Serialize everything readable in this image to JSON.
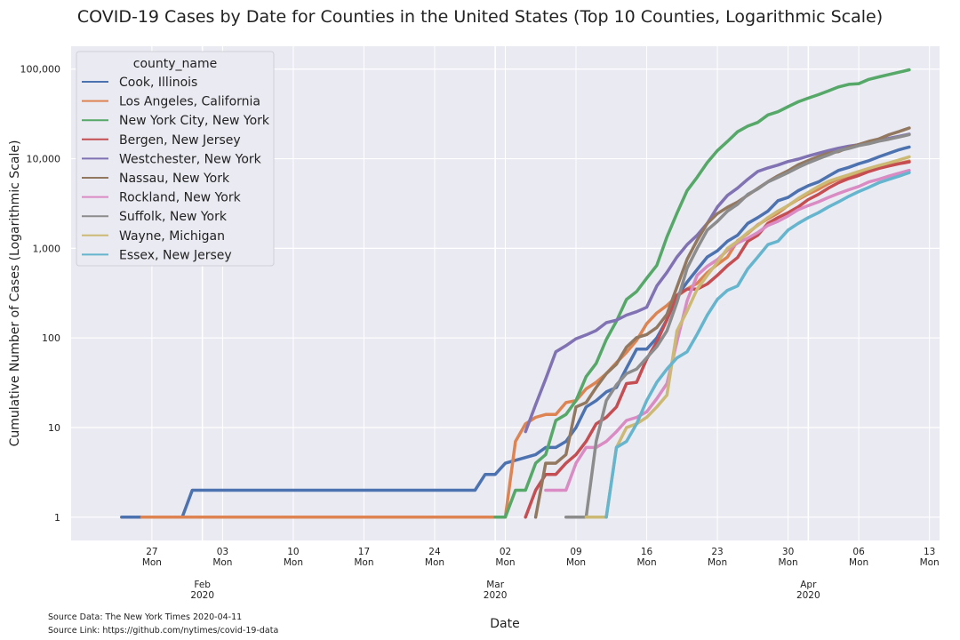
{
  "chart_data": {
    "type": "line",
    "title": "COVID-19 Cases by Date for Counties in the United States (Top 10 Counties, Logarithmic Scale)",
    "xlabel": "Date",
    "ylabel": "Cumulative Number of Cases (Logarithmic Scale)",
    "yscale": "log",
    "ylim": [
      0.55,
      180000
    ],
    "xlim": [
      "2020-01-19",
      "2020-04-14"
    ],
    "yticks": [
      1,
      10,
      100,
      1000,
      10000,
      100000
    ],
    "ytick_labels": [
      "1",
      "10",
      "100",
      "1,000",
      "10,000",
      "100,000"
    ],
    "xticks": [
      {
        "date": "2020-01-27",
        "day": "27",
        "weekday": "Mon"
      },
      {
        "date": "2020-02-03",
        "day": "03",
        "weekday": "Mon"
      },
      {
        "date": "2020-02-10",
        "day": "10",
        "weekday": "Mon"
      },
      {
        "date": "2020-02-17",
        "day": "17",
        "weekday": "Mon"
      },
      {
        "date": "2020-02-24",
        "day": "24",
        "weekday": "Mon"
      },
      {
        "date": "2020-03-02",
        "day": "02",
        "weekday": "Mon"
      },
      {
        "date": "2020-03-09",
        "day": "09",
        "weekday": "Mon"
      },
      {
        "date": "2020-03-16",
        "day": "16",
        "weekday": "Mon"
      },
      {
        "date": "2020-03-23",
        "day": "23",
        "weekday": "Mon"
      },
      {
        "date": "2020-03-30",
        "day": "30",
        "weekday": "Mon"
      },
      {
        "date": "2020-04-06",
        "day": "06",
        "weekday": "Mon"
      },
      {
        "date": "2020-04-13",
        "day": "13",
        "weekday": "Mon"
      }
    ],
    "month_ticks": [
      {
        "date": "2020-02-01",
        "month": "Feb",
        "year": "2020"
      },
      {
        "date": "2020-03-01",
        "month": "Mar",
        "year": "2020"
      },
      {
        "date": "2020-04-01",
        "month": "Apr",
        "year": "2020"
      }
    ],
    "grid": true,
    "legend_title": "county_name",
    "legend_position": "top-left",
    "series": [
      {
        "name": "Cook, Illinois",
        "color": "#4c72b0",
        "x": [
          "2020-01-24",
          "2020-01-26",
          "2020-01-30",
          "2020-01-31",
          "2020-02-28",
          "2020-02-29",
          "2020-03-01",
          "2020-03-02",
          "2020-03-05",
          "2020-03-06",
          "2020-03-07",
          "2020-03-08",
          "2020-03-09",
          "2020-03-10",
          "2020-03-11",
          "2020-03-12",
          "2020-03-13",
          "2020-03-14",
          "2020-03-15",
          "2020-03-16",
          "2020-03-17",
          "2020-03-18",
          "2020-03-19",
          "2020-03-20",
          "2020-03-21",
          "2020-03-22",
          "2020-03-23",
          "2020-03-24",
          "2020-03-25",
          "2020-03-26",
          "2020-03-27",
          "2020-03-28",
          "2020-03-29",
          "2020-03-30",
          "2020-03-31",
          "2020-04-01",
          "2020-04-02",
          "2020-04-03",
          "2020-04-04",
          "2020-04-05",
          "2020-04-06",
          "2020-04-07",
          "2020-04-08",
          "2020-04-09",
          "2020-04-10",
          "2020-04-11"
        ],
        "y": [
          1,
          1,
          1,
          2,
          2,
          3,
          3,
          4,
          5,
          6,
          6,
          7,
          10,
          17,
          20,
          25,
          28,
          46,
          75,
          75,
          100,
          160,
          290,
          420,
          580,
          800,
          940,
          1200,
          1400,
          1900,
          2200,
          2600,
          3400,
          3700,
          4400,
          5000,
          5500,
          6400,
          7400,
          8000,
          8800,
          9500,
          10500,
          11500,
          12600,
          13500
        ]
      },
      {
        "name": "Los Angeles, California",
        "color": "#dd8452",
        "x": [
          "2020-01-26",
          "2020-03-01",
          "2020-03-02",
          "2020-03-03",
          "2020-03-04",
          "2020-03-05",
          "2020-03-06",
          "2020-03-07",
          "2020-03-08",
          "2020-03-09",
          "2020-03-10",
          "2020-03-11",
          "2020-03-12",
          "2020-03-13",
          "2020-03-14",
          "2020-03-15",
          "2020-03-16",
          "2020-03-17",
          "2020-03-18",
          "2020-03-19",
          "2020-03-20",
          "2020-03-21",
          "2020-03-22",
          "2020-03-23",
          "2020-03-24",
          "2020-03-25",
          "2020-03-26",
          "2020-03-27",
          "2020-03-28",
          "2020-03-29",
          "2020-03-30",
          "2020-03-31",
          "2020-04-01",
          "2020-04-02",
          "2020-04-03",
          "2020-04-04",
          "2020-04-05",
          "2020-04-06",
          "2020-04-07",
          "2020-04-08",
          "2020-04-09",
          "2020-04-10",
          "2020-04-11"
        ],
        "y": [
          1,
          1,
          1,
          7,
          11,
          13,
          14,
          14,
          19,
          20,
          27,
          32,
          40,
          53,
          69,
          94,
          144,
          190,
          230,
          292,
          351,
          407,
          536,
          662,
          799,
          1216,
          1465,
          1829,
          2136,
          2474,
          3011,
          3518,
          4045,
          4566,
          5277,
          5940,
          6360,
          6910,
          7530,
          7955,
          8430,
          8873,
          9420
        ]
      },
      {
        "name": "New York City, New York",
        "color": "#55a868",
        "x": [
          "2020-03-01",
          "2020-03-02",
          "2020-03-03",
          "2020-03-04",
          "2020-03-05",
          "2020-03-06",
          "2020-03-07",
          "2020-03-08",
          "2020-03-09",
          "2020-03-10",
          "2020-03-11",
          "2020-03-12",
          "2020-03-13",
          "2020-03-14",
          "2020-03-15",
          "2020-03-16",
          "2020-03-17",
          "2020-03-18",
          "2020-03-19",
          "2020-03-20",
          "2020-03-21",
          "2020-03-22",
          "2020-03-23",
          "2020-03-24",
          "2020-03-25",
          "2020-03-26",
          "2020-03-27",
          "2020-03-28",
          "2020-03-29",
          "2020-03-30",
          "2020-03-31",
          "2020-04-01",
          "2020-04-02",
          "2020-04-03",
          "2020-04-04",
          "2020-04-05",
          "2020-04-06",
          "2020-04-07",
          "2020-04-08",
          "2020-04-09",
          "2020-04-10",
          "2020-04-11"
        ],
        "y": [
          1,
          1,
          2,
          2,
          4,
          5,
          12,
          14,
          20,
          37,
          52,
          96,
          154,
          269,
          329,
          463,
          644,
          1339,
          2469,
          4408,
          6211,
          9045,
          12339,
          15597,
          20011,
          23112,
          25398,
          30765,
          33474,
          38087,
          43139,
          47439,
          51809,
          57159,
          63306,
          67551,
          68776,
          76876,
          81803,
          87028,
          92384,
          98308
        ]
      },
      {
        "name": "Bergen, New Jersey",
        "color": "#c44e52",
        "x": [
          "2020-03-04",
          "2020-03-05",
          "2020-03-06",
          "2020-03-07",
          "2020-03-08",
          "2020-03-09",
          "2020-03-10",
          "2020-03-11",
          "2020-03-12",
          "2020-03-13",
          "2020-03-14",
          "2020-03-15",
          "2020-03-16",
          "2020-03-17",
          "2020-03-18",
          "2020-03-19",
          "2020-03-20",
          "2020-03-21",
          "2020-03-22",
          "2020-03-23",
          "2020-03-24",
          "2020-03-25",
          "2020-03-26",
          "2020-03-27",
          "2020-03-28",
          "2020-03-29",
          "2020-03-30",
          "2020-03-31",
          "2020-04-01",
          "2020-04-02",
          "2020-04-03",
          "2020-04-04",
          "2020-04-05",
          "2020-04-06",
          "2020-04-07",
          "2020-04-08",
          "2020-04-09",
          "2020-04-10",
          "2020-04-11"
        ],
        "y": [
          1,
          2,
          3,
          3,
          4,
          5,
          7,
          11,
          13,
          17,
          31,
          32,
          58,
          90,
          160,
          300,
          350,
          350,
          400,
          500,
          640,
          790,
          1200,
          1400,
          1900,
          2200,
          2500,
          2900,
          3500,
          4000,
          4700,
          5400,
          6000,
          6500,
          7200,
          7800,
          8300,
          8800,
          9200
        ]
      },
      {
        "name": "Westchester, New York",
        "color": "#8172b3",
        "x": [
          "2020-03-04",
          "2020-03-05",
          "2020-03-06",
          "2020-03-07",
          "2020-03-08",
          "2020-03-09",
          "2020-03-10",
          "2020-03-11",
          "2020-03-12",
          "2020-03-13",
          "2020-03-14",
          "2020-03-15",
          "2020-03-16",
          "2020-03-17",
          "2020-03-18",
          "2020-03-19",
          "2020-03-20",
          "2020-03-21",
          "2020-03-22",
          "2020-03-23",
          "2020-03-24",
          "2020-03-25",
          "2020-03-26",
          "2020-03-27",
          "2020-03-28",
          "2020-03-29",
          "2020-03-30",
          "2020-03-31",
          "2020-04-01",
          "2020-04-02",
          "2020-04-03",
          "2020-04-04",
          "2020-04-05",
          "2020-04-06",
          "2020-04-07",
          "2020-04-08",
          "2020-04-09",
          "2020-04-10",
          "2020-04-11"
        ],
        "y": [
          9,
          18,
          35,
          70,
          82,
          98,
          108,
          121,
          148,
          158,
          180,
          196,
          220,
          380,
          540,
          800,
          1100,
          1400,
          1900,
          2900,
          3900,
          4700,
          5900,
          7200,
          7900,
          8500,
          9300,
          9900,
          10700,
          11500,
          12300,
          13100,
          13800,
          14300,
          14800,
          15900,
          16900,
          17800,
          18800
        ]
      },
      {
        "name": "Nassau, New York",
        "color": "#937860",
        "x": [
          "2020-03-05",
          "2020-03-06",
          "2020-03-07",
          "2020-03-08",
          "2020-03-09",
          "2020-03-10",
          "2020-03-11",
          "2020-03-12",
          "2020-03-13",
          "2020-03-14",
          "2020-03-15",
          "2020-03-16",
          "2020-03-17",
          "2020-03-18",
          "2020-03-19",
          "2020-03-20",
          "2020-03-21",
          "2020-03-22",
          "2020-03-23",
          "2020-03-24",
          "2020-03-25",
          "2020-03-26",
          "2020-03-27",
          "2020-03-28",
          "2020-03-29",
          "2020-03-30",
          "2020-03-31",
          "2020-04-01",
          "2020-04-02",
          "2020-04-03",
          "2020-04-04",
          "2020-04-05",
          "2020-04-06",
          "2020-04-07",
          "2020-04-08",
          "2020-04-09",
          "2020-04-10",
          "2020-04-11"
        ],
        "y": [
          1,
          4,
          4,
          5,
          17,
          19,
          28,
          40,
          51,
          79,
          101,
          109,
          131,
          183,
          372,
          754,
          1234,
          1900,
          2442,
          2869,
          3285,
          3914,
          4657,
          5537,
          6445,
          7344,
          8544,
          9554,
          10587,
          11544,
          12024,
          13346,
          14398,
          15616,
          16610,
          18548,
          20140,
          22035
        ]
      },
      {
        "name": "Rockland, New York",
        "color": "#da8bc3",
        "x": [
          "2020-03-06",
          "2020-03-07",
          "2020-03-08",
          "2020-03-09",
          "2020-03-10",
          "2020-03-11",
          "2020-03-12",
          "2020-03-13",
          "2020-03-14",
          "2020-03-15",
          "2020-03-16",
          "2020-03-17",
          "2020-03-18",
          "2020-03-19",
          "2020-03-20",
          "2020-03-21",
          "2020-03-22",
          "2020-03-23",
          "2020-03-24",
          "2020-03-25",
          "2020-03-26",
          "2020-03-27",
          "2020-03-28",
          "2020-03-29",
          "2020-03-30",
          "2020-03-31",
          "2020-04-01",
          "2020-04-02",
          "2020-04-03",
          "2020-04-04",
          "2020-04-05",
          "2020-04-06",
          "2020-04-07",
          "2020-04-08",
          "2020-04-09",
          "2020-04-10",
          "2020-04-11"
        ],
        "y": [
          2,
          2,
          2,
          4,
          6,
          6,
          7,
          9,
          12,
          13,
          15,
          21,
          31,
          91,
          260,
          500,
          630,
          750,
          950,
          1150,
          1300,
          1500,
          1800,
          2000,
          2300,
          2700,
          3000,
          3300,
          3700,
          4100,
          4500,
          4900,
          5500,
          5900,
          6400,
          6900,
          7400
        ]
      },
      {
        "name": "Suffolk, New York",
        "color": "#8c8c8c",
        "x": [
          "2020-03-08",
          "2020-03-09",
          "2020-03-10",
          "2020-03-11",
          "2020-03-12",
          "2020-03-13",
          "2020-03-14",
          "2020-03-15",
          "2020-03-16",
          "2020-03-17",
          "2020-03-18",
          "2020-03-19",
          "2020-03-20",
          "2020-03-21",
          "2020-03-22",
          "2020-03-23",
          "2020-03-24",
          "2020-03-25",
          "2020-03-26",
          "2020-03-27",
          "2020-03-28",
          "2020-03-29",
          "2020-03-30",
          "2020-03-31",
          "2020-04-01",
          "2020-04-02",
          "2020-04-03",
          "2020-04-04",
          "2020-04-05",
          "2020-04-06",
          "2020-04-07",
          "2020-04-08",
          "2020-04-09",
          "2020-04-10",
          "2020-04-11"
        ],
        "y": [
          1,
          1,
          1,
          7,
          20,
          30,
          40,
          45,
          60,
          80,
          120,
          250,
          600,
          1000,
          1600,
          2000,
          2600,
          3100,
          4000,
          4600,
          5500,
          6200,
          7000,
          8000,
          9000,
          10000,
          11000,
          12300,
          13000,
          14000,
          14700,
          15700,
          16500,
          17500,
          18600
        ]
      },
      {
        "name": "Wayne, Michigan",
        "color": "#ccb974",
        "x": [
          "2020-03-10",
          "2020-03-11",
          "2020-03-12",
          "2020-03-13",
          "2020-03-14",
          "2020-03-15",
          "2020-03-16",
          "2020-03-17",
          "2020-03-18",
          "2020-03-19",
          "2020-03-20",
          "2020-03-21",
          "2020-03-22",
          "2020-03-23",
          "2020-03-24",
          "2020-03-25",
          "2020-03-26",
          "2020-03-27",
          "2020-03-28",
          "2020-03-29",
          "2020-03-30",
          "2020-03-31",
          "2020-04-01",
          "2020-04-02",
          "2020-04-03",
          "2020-04-04",
          "2020-04-05",
          "2020-04-06",
          "2020-04-07",
          "2020-04-08",
          "2020-04-09",
          "2020-04-10",
          "2020-04-11"
        ],
        "y": [
          1,
          1,
          1,
          6,
          10,
          11,
          13,
          17,
          23,
          120,
          200,
          350,
          500,
          700,
          1000,
          1200,
          1500,
          1800,
          2200,
          2600,
          3000,
          3600,
          4200,
          4900,
          5600,
          6100,
          6600,
          7200,
          7800,
          8400,
          9000,
          9700,
          10500
        ]
      },
      {
        "name": "Essex, New Jersey",
        "color": "#64b5cd",
        "x": [
          "2020-03-12",
          "2020-03-13",
          "2020-03-14",
          "2020-03-15",
          "2020-03-16",
          "2020-03-17",
          "2020-03-18",
          "2020-03-19",
          "2020-03-20",
          "2020-03-21",
          "2020-03-22",
          "2020-03-23",
          "2020-03-24",
          "2020-03-25",
          "2020-03-26",
          "2020-03-27",
          "2020-03-28",
          "2020-03-29",
          "2020-03-30",
          "2020-03-31",
          "2020-04-01",
          "2020-04-02",
          "2020-04-03",
          "2020-04-04",
          "2020-04-05",
          "2020-04-06",
          "2020-04-07",
          "2020-04-08",
          "2020-04-09",
          "2020-04-10",
          "2020-04-11"
        ],
        "y": [
          1,
          6,
          7,
          11,
          20,
          32,
          45,
          60,
          70,
          110,
          180,
          270,
          340,
          380,
          590,
          800,
          1100,
          1200,
          1600,
          1900,
          2200,
          2500,
          2900,
          3300,
          3800,
          4300,
          4800,
          5400,
          5900,
          6400,
          7000
        ]
      }
    ]
  },
  "source_data": "Source Data: The New York Times 2020-04-11",
  "source_link": "Source Link: https://github.com/nytimes/covid-19-data"
}
